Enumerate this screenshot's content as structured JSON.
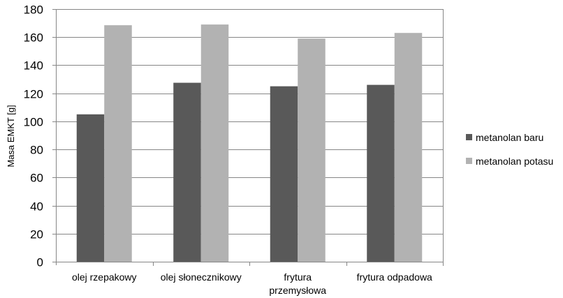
{
  "chart_data": {
    "type": "bar",
    "title": "",
    "xlabel": "",
    "ylabel": "Masa EMKT [g]",
    "ylim": [
      0,
      180
    ],
    "yticks": [
      0,
      20,
      40,
      60,
      80,
      100,
      120,
      140,
      160,
      180
    ],
    "grid": true,
    "legend_position": "right",
    "categories": [
      [
        "olej rzepakowy"
      ],
      [
        "olej słonecznikowy"
      ],
      [
        "frytura",
        "przemysłowa"
      ],
      [
        "frytura odpadowa"
      ]
    ],
    "series": [
      {
        "name": "metanolan baru",
        "color": "#595959",
        "values": [
          105,
          127.5,
          125,
          126
        ]
      },
      {
        "name": "metanolan potasu",
        "color": "#b2b2b2",
        "values": [
          168.5,
          169,
          159,
          163
        ]
      }
    ]
  }
}
